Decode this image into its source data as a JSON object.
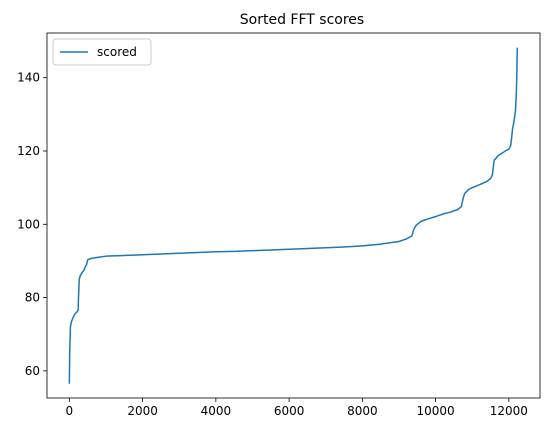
{
  "chart_data": {
    "type": "line",
    "title": "Sorted FFT scores",
    "xlabel": "",
    "ylabel": "",
    "xlim": [
      -610,
      12850
    ],
    "ylim": [
      52.6,
      152.2
    ],
    "xticks": [
      0,
      2000,
      4000,
      6000,
      8000,
      10000,
      12000
    ],
    "yticks": [
      60,
      80,
      100,
      120,
      140
    ],
    "grid": false,
    "legend_position": "top-left",
    "series": [
      {
        "name": "scored",
        "color": "#1f77b4",
        "x": [
          0,
          10,
          30,
          60,
          100,
          150,
          200,
          240,
          250,
          270,
          300,
          330,
          360,
          400,
          440,
          470,
          500,
          600,
          800,
          1000,
          1500,
          2000,
          2500,
          3000,
          3500,
          4000,
          4500,
          5000,
          5500,
          6000,
          6500,
          7000,
          7500,
          8000,
          8500,
          9000,
          9200,
          9350,
          9400,
          9450,
          9500,
          9600,
          9800,
          10000,
          10200,
          10400,
          10600,
          10700,
          10750,
          10780,
          10800,
          10850,
          10900,
          11000,
          11200,
          11400,
          11500,
          11550,
          11580,
          11600,
          11650,
          11700,
          11800,
          11900,
          12000,
          12050,
          12080,
          12100,
          12120,
          12140,
          12160,
          12180,
          12200,
          12210,
          12220,
          12230
        ],
        "y": [
          56.5,
          65.0,
          72.0,
          73.5,
          74.5,
          75.5,
          76.0,
          76.5,
          80.0,
          85.0,
          86.0,
          86.5,
          87.0,
          87.5,
          88.5,
          89.0,
          90.3,
          90.7,
          91.0,
          91.3,
          91.5,
          91.7,
          91.9,
          92.1,
          92.3,
          92.5,
          92.6,
          92.8,
          93.0,
          93.2,
          93.4,
          93.6,
          93.8,
          94.1,
          94.6,
          95.3,
          96.0,
          96.8,
          98.5,
          99.5,
          100.0,
          100.8,
          101.5,
          102.1,
          102.8,
          103.3,
          104.0,
          104.8,
          107.0,
          108.0,
          108.5,
          109.0,
          109.5,
          110.0,
          110.8,
          111.7,
          112.5,
          113.5,
          116.0,
          117.5,
          118.0,
          118.7,
          119.3,
          120.0,
          120.5,
          121.5,
          124.0,
          126.0,
          127.0,
          128.0,
          129.5,
          131.0,
          135.0,
          138.0,
          142.0,
          148.2
        ]
      }
    ]
  }
}
